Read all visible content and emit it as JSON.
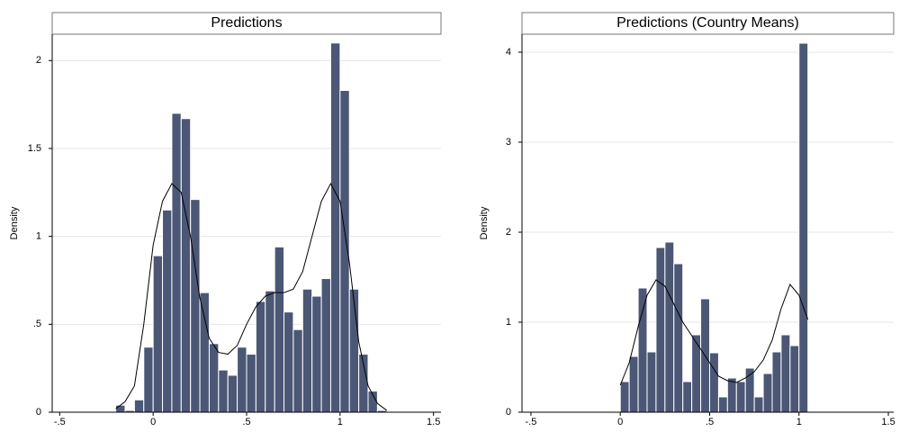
{
  "chart_data": [
    {
      "type": "histogram",
      "title": "Predictions",
      "ylabel": "Density",
      "color": "#4b5775",
      "grid": true,
      "bins": [
        -0.2,
        -0.15,
        -0.1,
        -0.05,
        0,
        0.05,
        0.1,
        0.15,
        0.2,
        0.25,
        0.3,
        0.35,
        0.4,
        0.45,
        0.5,
        0.55,
        0.6,
        0.65,
        0.7,
        0.75,
        0.8,
        0.85,
        0.9,
        0.95,
        1.0,
        1.05,
        1.1,
        1.15,
        1.2,
        1.25
      ],
      "values": [
        0.04,
        0.01,
        0.07,
        0.37,
        0.89,
        1.15,
        1.7,
        1.67,
        1.21,
        0.68,
        0.39,
        0.24,
        0.21,
        0.37,
        0.33,
        0.63,
        0.69,
        0.94,
        0.57,
        0.47,
        0.7,
        0.66,
        0.76,
        2.1,
        1.83,
        0.7,
        0.33,
        0.12,
        0.01
      ],
      "density": {
        "color": "#000000",
        "x": [
          -0.2,
          -0.15,
          -0.1,
          -0.05,
          0,
          0.05,
          0.1,
          0.15,
          0.2,
          0.25,
          0.3,
          0.35,
          0.4,
          0.45,
          0.5,
          0.55,
          0.6,
          0.65,
          0.7,
          0.75,
          0.8,
          0.85,
          0.9,
          0.95,
          1.0,
          1.05,
          1.1,
          1.15,
          1.2,
          1.25
        ],
        "values": [
          0.02,
          0.06,
          0.15,
          0.5,
          0.95,
          1.2,
          1.3,
          1.25,
          1.0,
          0.65,
          0.42,
          0.34,
          0.33,
          0.38,
          0.5,
          0.6,
          0.66,
          0.68,
          0.68,
          0.7,
          0.8,
          1.0,
          1.2,
          1.3,
          1.2,
          0.85,
          0.4,
          0.15,
          0.05,
          0.01
        ]
      },
      "xlim": [
        -0.54,
        1.54
      ],
      "xticks": [
        {
          "value": -0.5,
          "label": "-.5"
        },
        0,
        {
          "value": 0.5,
          "label": ".5"
        },
        1,
        1.5
      ],
      "ylim": [
        0,
        2.15
      ],
      "yticks": [
        0,
        {
          "value": 0.5,
          "label": ".5"
        },
        1,
        1.5,
        2
      ]
    },
    {
      "type": "histogram",
      "title": "Predictions (Country Means)",
      "ylabel": "Density",
      "color": "#4b5775",
      "grid": true,
      "bins": [
        0,
        0.05,
        0.1,
        0.15,
        0.2,
        0.25,
        0.3,
        0.35,
        0.4,
        0.45,
        0.5,
        0.55,
        0.6,
        0.65,
        0.7,
        0.75,
        0.8,
        0.85,
        0.9,
        0.95,
        1.0,
        1.05
      ],
      "values": [
        0.34,
        0.62,
        1.38,
        0.67,
        1.83,
        1.89,
        1.65,
        0.34,
        0.86,
        1.26,
        0.66,
        0.17,
        0.38,
        0.34,
        0.49,
        0.17,
        0.43,
        0.67,
        0.86,
        0.74,
        4.1
      ],
      "density": {
        "color": "#000000",
        "x": [
          0,
          0.05,
          0.1,
          0.15,
          0.2,
          0.25,
          0.3,
          0.35,
          0.4,
          0.45,
          0.5,
          0.55,
          0.6,
          0.65,
          0.7,
          0.75,
          0.8,
          0.85,
          0.9,
          0.95,
          1.0,
          1.05
        ],
        "values": [
          0.3,
          0.55,
          0.95,
          1.3,
          1.47,
          1.4,
          1.2,
          1.0,
          0.85,
          0.7,
          0.55,
          0.4,
          0.35,
          0.33,
          0.38,
          0.45,
          0.58,
          0.8,
          1.15,
          1.42,
          1.3,
          1.03
        ]
      },
      "xlim": [
        -0.55,
        1.53
      ],
      "xticks": [
        {
          "value": -0.5,
          "label": "-.5"
        },
        0,
        {
          "value": 0.5,
          "label": ".5"
        },
        1,
        1.5
      ],
      "ylim": [
        0,
        4.2
      ],
      "yticks": [
        0,
        1,
        2,
        3,
        4
      ]
    }
  ]
}
